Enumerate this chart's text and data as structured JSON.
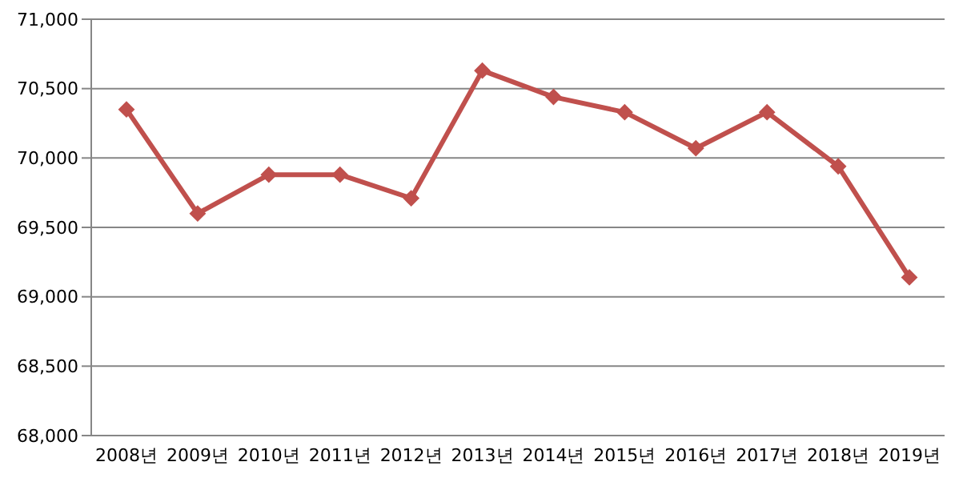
{
  "chart_data": {
    "type": "line",
    "categories": [
      "2008년",
      "2009년",
      "2010년",
      "2011년",
      "2012년",
      "2013년",
      "2014년",
      "2015년",
      "2016년",
      "2017년",
      "2018년",
      "2019년"
    ],
    "series": [
      {
        "color": "#c0504d",
        "values": [
          70350,
          69600,
          69880,
          69880,
          69710,
          70630,
          70440,
          70330,
          70070,
          70330,
          69940,
          69140
        ]
      }
    ],
    "ylim": [
      68000,
      71000
    ],
    "yticks": [
      {
        "value": 68000,
        "label": "68,000"
      },
      {
        "value": 68500,
        "label": "68,500"
      },
      {
        "value": 69000,
        "label": "69,000"
      },
      {
        "value": 69500,
        "label": "69,500"
      },
      {
        "value": 70000,
        "label": "70,000"
      },
      {
        "value": 70500,
        "label": "70,500"
      },
      {
        "value": 71000,
        "label": "71,000"
      }
    ],
    "grid": "y",
    "marker": "diamond",
    "line_style": "solid"
  }
}
